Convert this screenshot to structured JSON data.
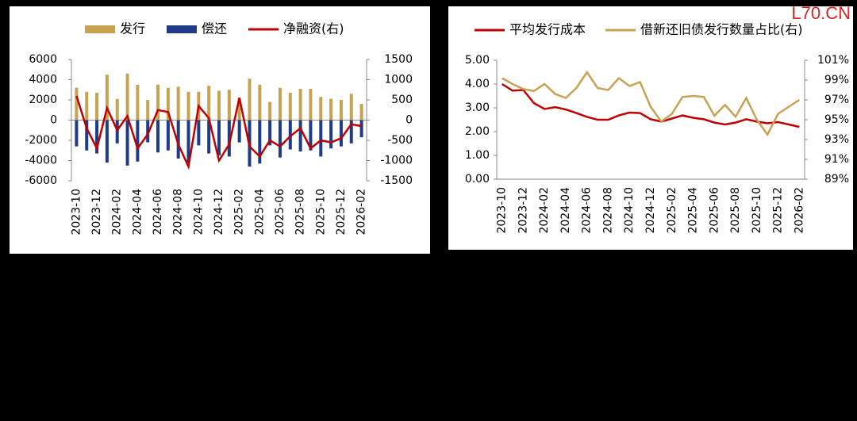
{
  "watermark": "L70.CN",
  "chart_data": [
    {
      "type": "bar",
      "categories": [
        "2023-10",
        null,
        "2023-12",
        null,
        "2024-02",
        null,
        "2024-04",
        null,
        "2024-06",
        null,
        "2024-08",
        null,
        "2024-10",
        null,
        "2024-12",
        null,
        "2025-02",
        null,
        "2025-04",
        null,
        "2025-06",
        null,
        "2025-08",
        null,
        "2025-10",
        null,
        "2025-12",
        null,
        "2026-02"
      ],
      "series": [
        {
          "name": "发行",
          "type": "bar",
          "color": "#c8a253",
          "values": [
            3200,
            2800,
            2700,
            4500,
            2100,
            4600,
            3500,
            2000,
            3500,
            3200,
            3300,
            2800,
            2800,
            3400,
            2900,
            3000,
            2200,
            4100,
            3500,
            1800,
            3200,
            2700,
            3100,
            3100,
            2300,
            2100,
            2000,
            2600,
            1600
          ]
        },
        {
          "name": "偿还",
          "type": "bar",
          "color": "#1f3c88",
          "values": [
            -2600,
            -3000,
            -3300,
            -4200,
            -2300,
            -4500,
            -4100,
            -2200,
            -3200,
            -3000,
            -3800,
            -4200,
            -2500,
            -3300,
            -3500,
            -3600,
            -2200,
            -4600,
            -4300,
            -2500,
            -3700,
            -2900,
            -3100,
            -3000,
            -3600,
            -2800,
            -2600,
            -2300,
            -1700
          ]
        },
        {
          "name": "净融资(右)",
          "type": "line",
          "axis": "y2",
          "color": "#c00000",
          "values": [
            600,
            -200,
            -700,
            300,
            -250,
            100,
            -700,
            -350,
            250,
            200,
            -600,
            -1150,
            350,
            50,
            -1000,
            -600,
            550,
            -650,
            -900,
            -500,
            -650,
            -400,
            -200,
            -700,
            -500,
            -550,
            -450,
            -100,
            -150
          ]
        }
      ],
      "ylim": [
        -6000,
        6000
      ],
      "yticks": [
        -6000,
        -4000,
        -2000,
        0,
        2000,
        4000,
        6000
      ],
      "y2lim": [
        -1500,
        1500
      ],
      "y2ticks": [
        -1500,
        -1000,
        -500,
        0,
        500,
        1000,
        1500
      ]
    },
    {
      "type": "line",
      "categories": [
        "2023-10",
        null,
        "2023-12",
        null,
        "2024-02",
        null,
        "2024-04",
        null,
        "2024-06",
        null,
        "2024-08",
        null,
        "2024-10",
        null,
        "2024-12",
        null,
        "2025-02",
        null,
        "2025-04",
        null,
        "2025-06",
        null,
        "2025-08",
        null,
        "2025-10",
        null,
        "2025-12",
        null,
        "2026-02"
      ],
      "series": [
        {
          "name": "平均发行成本",
          "color": "#c00000",
          "values": [
            4.0,
            3.72,
            3.75,
            3.2,
            2.95,
            3.03,
            2.93,
            2.78,
            2.62,
            2.5,
            2.5,
            2.68,
            2.8,
            2.78,
            2.52,
            2.42,
            2.55,
            2.68,
            2.58,
            2.52,
            2.38,
            2.3,
            2.38,
            2.52,
            2.42,
            2.35,
            2.4,
            2.3,
            2.2
          ]
        },
        {
          "name": "借新还旧债发行数量占比(右)",
          "axis": "y2",
          "color": "#c8a253",
          "values": [
            99.2,
            98.6,
            98.1,
            97.9,
            98.6,
            97.6,
            97.2,
            98.2,
            99.8,
            98.2,
            98.0,
            99.2,
            98.4,
            98.8,
            96.3,
            94.8,
            95.6,
            97.3,
            97.4,
            97.3,
            95.4,
            96.5,
            95.3,
            97.2,
            95.0,
            93.5,
            95.6,
            96.3,
            97.0
          ]
        }
      ],
      "ylim": [
        0,
        5
      ],
      "yticks": [
        {
          "value": 0,
          "label": "0.00"
        },
        {
          "value": 1,
          "label": "1.00"
        },
        {
          "value": 2,
          "label": "2.00"
        },
        {
          "value": 3,
          "label": "3.00"
        },
        {
          "value": 4,
          "label": "4.00"
        },
        {
          "value": 5,
          "label": "5.00"
        }
      ],
      "y2lim": [
        89,
        101
      ],
      "y2ticks": [
        {
          "value": 89,
          "label": "89%"
        },
        {
          "value": 91,
          "label": "91%"
        },
        {
          "value": 93,
          "label": "93%"
        },
        {
          "value": 95,
          "label": "95%"
        },
        {
          "value": 97,
          "label": "97%"
        },
        {
          "value": 99,
          "label": "99%"
        },
        {
          "value": 101,
          "label": "101%"
        }
      ]
    }
  ]
}
